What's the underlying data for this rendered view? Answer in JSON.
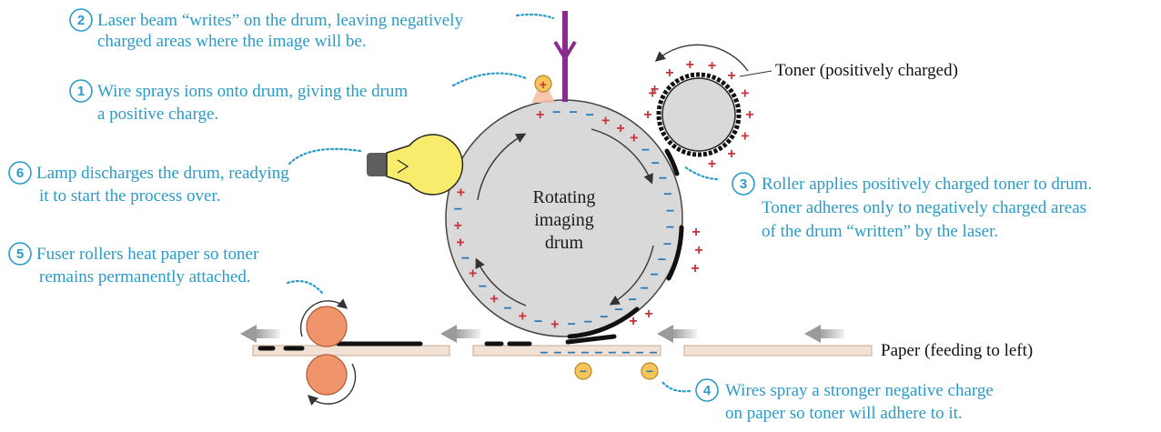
{
  "drum": {
    "label_lines": [
      "Rotating",
      "imaging",
      "drum"
    ]
  },
  "toner_label": "Toner (positively charged)",
  "paper_label": "Paper (feeding to left)",
  "steps": [
    {
      "num": "1",
      "lines": [
        "Wire sprays ions onto drum, giving the drum",
        "a positive charge."
      ]
    },
    {
      "num": "2",
      "lines": [
        "Laser beam “writes” on the drum, leaving negatively",
        "charged areas where the image will be."
      ]
    },
    {
      "num": "3",
      "lines": [
        "Roller applies positively charged toner to drum.",
        "Toner adheres only to negatively charged areas",
        "of the drum “written” by the laser."
      ]
    },
    {
      "num": "4",
      "lines": [
        "Wires spray a stronger negative charge",
        "on paper so toner will adhere to it."
      ]
    },
    {
      "num": "5",
      "lines": [
        "Fuser rollers heat paper so toner",
        "remains permanently attached."
      ]
    },
    {
      "num": "6",
      "lines": [
        "Lamp discharges the drum, readying",
        "it to start the process over."
      ]
    }
  ],
  "symbols": {
    "plus": "+",
    "minus": "−"
  },
  "colors": {
    "callout_text": "#2a9bc8",
    "laser": "#8b2a8f",
    "positive": "#c8323a",
    "negative": "#2a7ab8",
    "fuser": "#f0956b",
    "bulb": "#f7ec6b",
    "drum": "#d9d9d9",
    "paper": "#f2e2d6"
  }
}
